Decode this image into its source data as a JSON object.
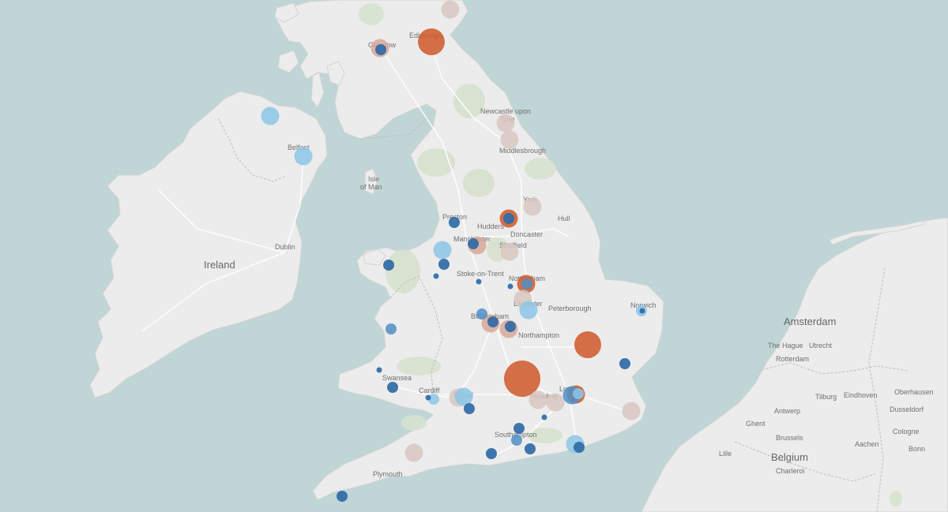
{
  "colors": {
    "sea": "#bfd5d6",
    "land": "#ececec",
    "land_edge": "#d4d4d4",
    "park": "#d7e2cf",
    "road": "#ffffff",
    "label": "#6f6f6f",
    "dark_orange": "#cf5c2f",
    "light_orange": "#d8a898",
    "pale": "#d9c7c1",
    "dark_blue": "#2f6aa6",
    "mid_blue": "#4f8fc5",
    "light_blue": "#8cc6e6"
  },
  "labels": {
    "countries": [
      {
        "name": "Ireland",
        "size": "big"
      },
      {
        "name": "Belgium",
        "size": "big"
      }
    ],
    "cities_big": [
      "Amsterdam"
    ],
    "cities": [
      "Edinburgh",
      "Glasgow",
      "Belfast",
      "Newcastle upon",
      "Tyne",
      "Middlesbrough",
      "Isle",
      "of Man",
      "York",
      "Preston",
      "Hull",
      "Hudders",
      "Doncaster",
      "Manchester",
      "Sheffield",
      "Dublin",
      "Stoke-on-Trent",
      "Nottingham",
      "Leicester",
      "Peterborough",
      "Norwich",
      "Birmingham",
      "Northampton",
      "Swansea",
      "Cardiff",
      "Bristol",
      "Reading",
      "London",
      "Southampton",
      "Plymouth",
      "The Hague",
      "Utrecht",
      "Rotterdam",
      "Tilburg",
      "Eindhoven",
      "Antwerp",
      "Ghent",
      "Brussels",
      "Oberhausen",
      "Dusseldorf",
      "Cologne",
      "Aachen",
      "Bonn",
      "Lille",
      "Charleroi"
    ]
  },
  "markers": [
    {
      "name": "Edinburgh",
      "tone": "dark_orange",
      "size": "large"
    },
    {
      "name": "Glasgow",
      "tone": "light_orange",
      "size": "medium"
    },
    {
      "name": "Glasgow inner",
      "tone": "dark_blue",
      "size": "small"
    },
    {
      "name": "North-east Scotland",
      "tone": "pale",
      "size": "medium"
    },
    {
      "name": "Northern Ireland",
      "tone": "light_blue",
      "size": "medium"
    },
    {
      "name": "Belfast",
      "tone": "light_blue",
      "size": "medium"
    },
    {
      "name": "Newcastle upon Tyne",
      "tone": "pale",
      "size": "medium"
    },
    {
      "name": "Middlesbrough",
      "tone": "pale",
      "size": "medium"
    },
    {
      "name": "York",
      "tone": "pale",
      "size": "medium"
    },
    {
      "name": "Leeds",
      "tone": "dark_orange",
      "size": "medium"
    },
    {
      "name": "Leeds inner",
      "tone": "dark_blue",
      "size": "small"
    },
    {
      "name": "Preston",
      "tone": "dark_blue",
      "size": "small"
    },
    {
      "name": "Manchester",
      "tone": "light_orange",
      "size": "medium"
    },
    {
      "name": "Manchester inner",
      "tone": "dark_blue",
      "size": "small"
    },
    {
      "name": "Sheffield",
      "tone": "pale",
      "size": "medium"
    },
    {
      "name": "Liverpool",
      "tone": "light_blue",
      "size": "medium"
    },
    {
      "name": "Chester",
      "tone": "dark_blue",
      "size": "small"
    },
    {
      "name": "North Wales",
      "tone": "dark_blue",
      "size": "small"
    },
    {
      "name": "Wales dot",
      "tone": "dark_blue",
      "size": "tiny"
    },
    {
      "name": "Stoke-on-Trent",
      "tone": "dark_blue",
      "size": "tiny"
    },
    {
      "name": "Nottingham",
      "tone": "dark_orange",
      "size": "medium"
    },
    {
      "name": "Nottingham inner",
      "tone": "mid_blue",
      "size": "small"
    },
    {
      "name": "Derby",
      "tone": "dark_blue",
      "size": "tiny"
    },
    {
      "name": "Leicester",
      "tone": "pale",
      "size": "medium"
    },
    {
      "name": "Leicester blue",
      "tone": "light_blue",
      "size": "medium"
    },
    {
      "name": "Norwich",
      "tone": "light_blue",
      "size": "small"
    },
    {
      "name": "Norwich inner",
      "tone": "dark_blue",
      "size": "tiny"
    },
    {
      "name": "Birmingham",
      "tone": "light_orange",
      "size": "medium"
    },
    {
      "name": "Birmingham 2",
      "tone": "light_orange",
      "size": "medium"
    },
    {
      "name": "Wolverhampton",
      "tone": "mid_blue",
      "size": "small"
    },
    {
      "name": "Birmingham inner",
      "tone": "dark_blue",
      "size": "small"
    },
    {
      "name": "Coventry",
      "tone": "dark_blue",
      "size": "small"
    },
    {
      "name": "Aberystwyth",
      "tone": "mid_blue",
      "size": "small"
    },
    {
      "name": "Cambridge",
      "tone": "dark_orange",
      "size": "large"
    },
    {
      "name": "Colchester",
      "tone": "dark_blue",
      "size": "small"
    },
    {
      "name": "Oxford",
      "tone": "dark_orange",
      "size": "xlarge"
    },
    {
      "name": "Swansea",
      "tone": "dark_blue",
      "size": "small"
    },
    {
      "name": "Carmarthen",
      "tone": "dark_blue",
      "size": "tiny"
    },
    {
      "name": "Cardiff",
      "tone": "light_blue",
      "size": "small"
    },
    {
      "name": "Cardiff inner",
      "tone": "dark_blue",
      "size": "tiny"
    },
    {
      "name": "Bristol",
      "tone": "pale",
      "size": "medium"
    },
    {
      "name": "Bristol blue",
      "tone": "light_blue",
      "size": "medium"
    },
    {
      "name": "Bath",
      "tone": "dark_blue",
      "size": "small"
    },
    {
      "name": "Reading",
      "tone": "pale",
      "size": "medium"
    },
    {
      "name": "Reading 2",
      "tone": "pale",
      "size": "medium"
    },
    {
      "name": "London",
      "tone": "dark_orange",
      "size": "medium"
    },
    {
      "name": "London blue",
      "tone": "mid_blue",
      "size": "medium"
    },
    {
      "name": "London light",
      "tone": "light_blue",
      "size": "small"
    },
    {
      "name": "Kent",
      "tone": "pale",
      "size": "medium"
    },
    {
      "name": "Guildford",
      "tone": "dark_blue",
      "size": "tiny"
    },
    {
      "name": "Southampton",
      "tone": "dark_blue",
      "size": "small"
    },
    {
      "name": "Winchester",
      "tone": "mid_blue",
      "size": "small"
    },
    {
      "name": "Portsmouth",
      "tone": "dark_blue",
      "size": "small"
    },
    {
      "name": "Bournemouth",
      "tone": "dark_blue",
      "size": "small"
    },
    {
      "name": "Brighton",
      "tone": "light_blue",
      "size": "medium"
    },
    {
      "name": "Brighton inner",
      "tone": "dark_blue",
      "size": "small"
    },
    {
      "name": "Exeter",
      "tone": "pale",
      "size": "medium"
    },
    {
      "name": "Plymouth",
      "tone": "dark_blue",
      "size": "small"
    }
  ]
}
